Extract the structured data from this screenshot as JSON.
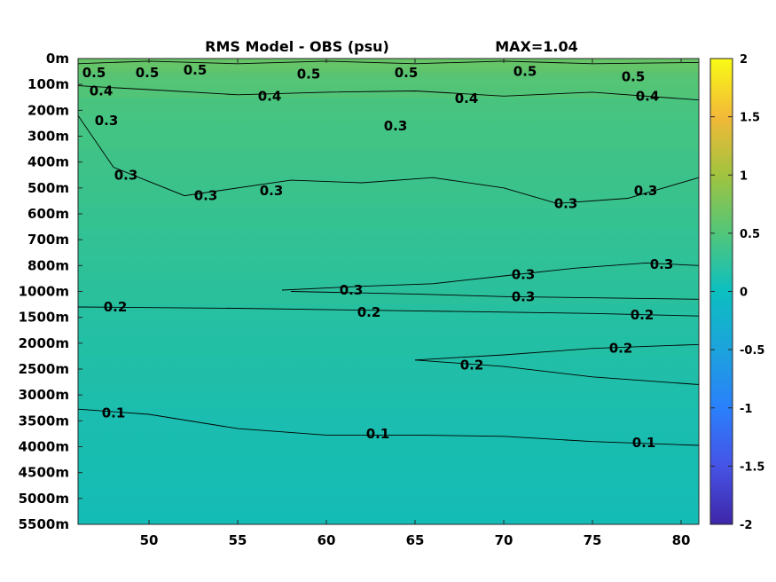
{
  "chart_data": {
    "type": "heatmap",
    "title": "RMS Model - OBS (psu)",
    "subtitle": "MAX=1.04",
    "xlim": [
      46,
      81
    ],
    "x_ticks": [
      50,
      55,
      60,
      65,
      70,
      75,
      80
    ],
    "y_depth_levels": [
      "0m",
      "100m",
      "200m",
      "300m",
      "400m",
      "500m",
      "600m",
      "700m",
      "800m",
      "1000m",
      "1500m",
      "2000m",
      "2500m",
      "3000m",
      "3500m",
      "4000m",
      "4500m",
      "5000m",
      "5500m"
    ],
    "y_axis_inverted": true,
    "colorbar": {
      "colormap": "parula",
      "clim": [
        -2,
        2
      ],
      "ticks": [
        2,
        1.5,
        1,
        0.5,
        0,
        -0.5,
        -1,
        -1.5,
        -2
      ],
      "tick_labels": [
        "2",
        "1.5",
        "1",
        "0.5",
        "0",
        "-0.5",
        "-1",
        "-1.5",
        "-2"
      ]
    },
    "field_by_level": [
      {
        "depth": "0m",
        "value": 0.55
      },
      {
        "depth": "100m",
        "value": 0.45
      },
      {
        "depth": "200m",
        "value": 0.36
      },
      {
        "depth": "300m",
        "value": 0.34
      },
      {
        "depth": "400m",
        "value": 0.32
      },
      {
        "depth": "500m",
        "value": 0.3
      },
      {
        "depth": "600m",
        "value": 0.28
      },
      {
        "depth": "700m",
        "value": 0.26
      },
      {
        "depth": "800m",
        "value": 0.25
      },
      {
        "depth": "1000m",
        "value": 0.23
      },
      {
        "depth": "1500m",
        "value": 0.18
      },
      {
        "depth": "2000m",
        "value": 0.16
      },
      {
        "depth": "2500m",
        "value": 0.15
      },
      {
        "depth": "3000m",
        "value": 0.12
      },
      {
        "depth": "3500m",
        "value": 0.1
      },
      {
        "depth": "4000m",
        "value": 0.09
      },
      {
        "depth": "4500m",
        "value": 0.08
      },
      {
        "depth": "5000m",
        "value": 0.07
      },
      {
        "depth": "5500m",
        "value": 0.06
      }
    ],
    "contours": [
      {
        "level": 0.5,
        "label": "0.5",
        "points": [
          [
            46,
            0.2
          ],
          [
            50,
            0.1
          ],
          [
            55,
            0.2
          ],
          [
            60,
            0.1
          ],
          [
            65,
            0.2
          ],
          [
            70,
            0.1
          ],
          [
            75,
            0.2
          ],
          [
            81,
            0.15
          ]
        ],
        "labels": [
          [
            46.9,
            0.55
          ],
          [
            49.9,
            0.55
          ],
          [
            52.6,
            0.45
          ],
          [
            59.0,
            0.6
          ],
          [
            64.5,
            0.55
          ],
          [
            71.2,
            0.5
          ],
          [
            77.3,
            0.7
          ]
        ]
      },
      {
        "level": 0.4,
        "label": "0.4",
        "points": [
          [
            46,
            1.05
          ],
          [
            50,
            1.2
          ],
          [
            55,
            1.4
          ],
          [
            60,
            1.3
          ],
          [
            65,
            1.25
          ],
          [
            70,
            1.45
          ],
          [
            75,
            1.3
          ],
          [
            81,
            1.6
          ]
        ],
        "labels": [
          [
            47.3,
            1.25
          ],
          [
            56.8,
            1.45
          ],
          [
            67.9,
            1.55
          ],
          [
            78.1,
            1.45
          ]
        ]
      },
      {
        "level": 0.3,
        "label": "0.3",
        "points": [
          [
            46,
            2.2
          ],
          [
            48,
            4.2
          ],
          [
            52,
            5.3
          ],
          [
            58,
            4.7
          ],
          [
            62,
            4.8
          ],
          [
            66,
            4.6
          ],
          [
            70,
            5.0
          ],
          [
            73,
            5.6
          ],
          [
            77,
            5.4
          ],
          [
            81,
            4.6
          ]
        ],
        "labels": [
          [
            47.6,
            2.4
          ],
          [
            48.7,
            4.5
          ],
          [
            53.2,
            5.3
          ],
          [
            56.9,
            5.1
          ],
          [
            63.9,
            2.6
          ],
          [
            73.5,
            5.6
          ],
          [
            78.0,
            5.1
          ]
        ]
      },
      {
        "level": 0.3,
        "label": "0.3",
        "points": [
          [
            57.5,
            8.95
          ],
          [
            62,
            8.8
          ],
          [
            66,
            8.7
          ],
          [
            70,
            8.4
          ],
          [
            74,
            8.1
          ],
          [
            78,
            7.9
          ],
          [
            81,
            8.0
          ]
        ],
        "labels": [
          [
            61.4,
            8.95
          ],
          [
            71.1,
            8.35
          ],
          [
            78.9,
            7.95
          ]
        ]
      },
      {
        "level": 0.3,
        "label": "0.3",
        "points": [
          [
            58,
            9.0
          ],
          [
            65,
            9.1
          ],
          [
            70,
            9.2
          ],
          [
            81,
            9.3
          ]
        ],
        "labels": [
          [
            71.1,
            9.2
          ]
        ]
      },
      {
        "level": 0.2,
        "label": "0.2",
        "points": [
          [
            46,
            9.6
          ],
          [
            55,
            9.65
          ],
          [
            65,
            9.75
          ],
          [
            75,
            9.85
          ],
          [
            81,
            9.95
          ]
        ],
        "labels": [
          [
            48.1,
            9.6
          ],
          [
            62.4,
            9.8
          ],
          [
            77.8,
            9.9
          ]
        ]
      },
      {
        "level": 0.2,
        "label": "0.2",
        "points": [
          [
            65,
            11.65
          ],
          [
            70,
            11.45
          ],
          [
            75,
            11.2
          ],
          [
            81,
            11.05
          ]
        ],
        "labels": [
          [
            76.6,
            11.2
          ]
        ]
      },
      {
        "level": 0.2,
        "label": "0.2",
        "points": [
          [
            65,
            11.65
          ],
          [
            70,
            11.9
          ],
          [
            75,
            12.3
          ],
          [
            81,
            12.6
          ]
        ],
        "labels": [
          [
            68.2,
            11.85
          ]
        ]
      },
      {
        "level": 0.1,
        "label": "0.1",
        "points": [
          [
            46,
            13.55
          ],
          [
            50,
            13.75
          ],
          [
            55,
            14.3
          ],
          [
            60,
            14.55
          ],
          [
            65,
            14.55
          ],
          [
            70,
            14.6
          ],
          [
            75,
            14.8
          ],
          [
            81,
            14.95
          ]
        ],
        "labels": [
          [
            48.0,
            13.7
          ],
          [
            62.9,
            14.5
          ],
          [
            77.9,
            14.85
          ]
        ]
      }
    ]
  }
}
